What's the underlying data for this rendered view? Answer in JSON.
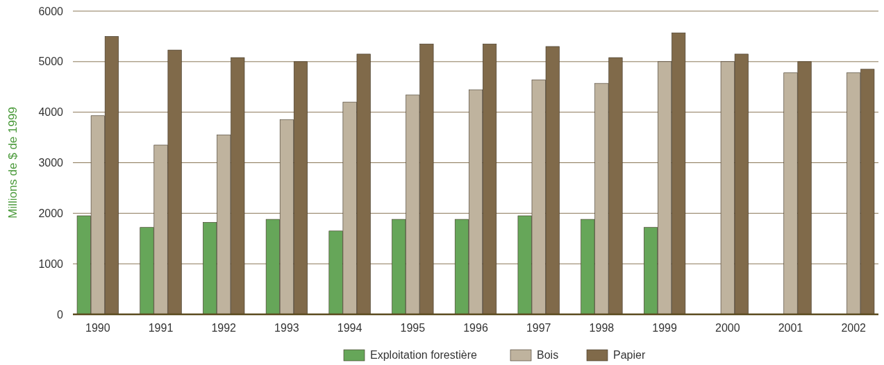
{
  "chart_data": {
    "type": "bar",
    "ylabel": "Millions de $ de 1999",
    "categories": [
      "1990",
      "1991",
      "1992",
      "1993",
      "1994",
      "1995",
      "1996",
      "1997",
      "1998",
      "1999",
      "2000",
      "2001",
      "2002"
    ],
    "series": [
      {
        "name": "Exploitation forestière",
        "color": "#66a659",
        "values": [
          1950,
          1720,
          1820,
          1880,
          1650,
          1880,
          1880,
          1950,
          1880,
          1720,
          null,
          null,
          null
        ]
      },
      {
        "name": "Bois",
        "color": "#bfb39e",
        "values": [
          3930,
          3350,
          3550,
          3850,
          4200,
          4340,
          4440,
          4640,
          4570,
          5000,
          5000,
          4780,
          4780
        ]
      },
      {
        "name": "Papier",
        "color": "#806a4a",
        "values": [
          5500,
          5230,
          5080,
          5000,
          5150,
          5350,
          5350,
          5300,
          5080,
          5570,
          5150,
          5000,
          4850
        ]
      }
    ],
    "ylim": [
      0,
      6000
    ],
    "yticks": [
      0,
      1000,
      2000,
      3000,
      4000,
      5000,
      6000
    ],
    "grid": "y",
    "legend": "bottom"
  }
}
